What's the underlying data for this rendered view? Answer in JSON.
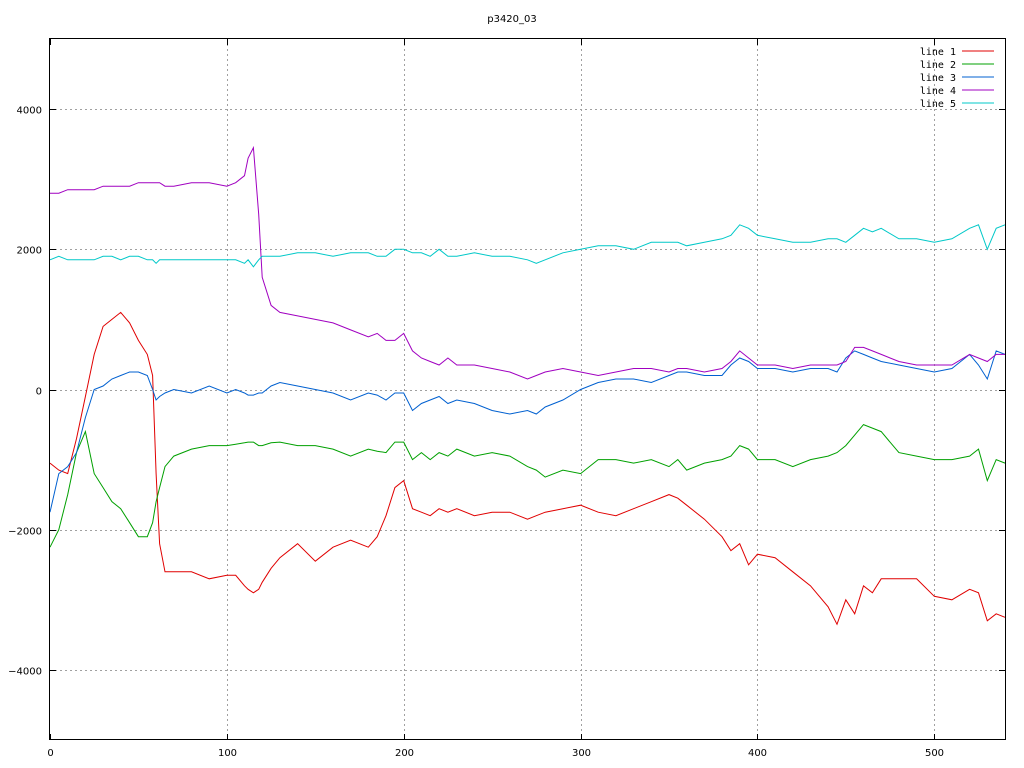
{
  "chart_data": {
    "type": "line",
    "title": "p3420_03",
    "xlabel": "",
    "ylabel": "",
    "xlim": [
      0,
      540
    ],
    "ylim": [
      -5000,
      5000
    ],
    "grid": true,
    "legend_position": "top-right",
    "x_ticks": [
      0,
      100,
      200,
      300,
      400,
      500
    ],
    "y_ticks": [
      -4000,
      -2000,
      0,
      2000,
      4000
    ],
    "x_tick_labels": [
      "0",
      "100",
      "200",
      "300",
      "400",
      "500"
    ],
    "y_tick_labels": [
      "−4000",
      "−2000",
      "0",
      "2000",
      "4000"
    ],
    "x": [
      0,
      5,
      10,
      15,
      20,
      25,
      30,
      35,
      40,
      45,
      50,
      55,
      58,
      60,
      62,
      65,
      70,
      80,
      90,
      100,
      105,
      110,
      112,
      115,
      118,
      120,
      125,
      130,
      140,
      150,
      160,
      170,
      180,
      185,
      190,
      195,
      200,
      205,
      210,
      215,
      220,
      225,
      230,
      240,
      250,
      260,
      270,
      275,
      280,
      290,
      300,
      310,
      320,
      330,
      340,
      350,
      355,
      360,
      370,
      380,
      385,
      390,
      395,
      400,
      410,
      420,
      430,
      440,
      445,
      450,
      455,
      460,
      465,
      470,
      480,
      490,
      500,
      510,
      520,
      525,
      530,
      535,
      540
    ],
    "series": [
      {
        "name": "line 1",
        "color": "#e00000",
        "values": [
          -1050,
          -1150,
          -1200,
          -700,
          -100,
          500,
          900,
          1000,
          1100,
          950,
          700,
          500,
          200,
          -1200,
          -2200,
          -2600,
          -2600,
          -2600,
          -2700,
          -2650,
          -2650,
          -2800,
          -2850,
          -2900,
          -2850,
          -2750,
          -2550,
          -2400,
          -2200,
          -2450,
          -2250,
          -2150,
          -2250,
          -2100,
          -1800,
          -1400,
          -1300,
          -1700,
          -1750,
          -1800,
          -1700,
          -1750,
          -1700,
          -1800,
          -1750,
          -1750,
          -1850,
          -1800,
          -1750,
          -1700,
          -1650,
          -1750,
          -1800,
          -1700,
          -1600,
          -1500,
          -1550,
          -1650,
          -1850,
          -2100,
          -2300,
          -2200,
          -2500,
          -2350,
          -2400,
          -2600,
          -2800,
          -3100,
          -3350,
          -3000,
          -3200,
          -2800,
          -2900,
          -2700,
          -2700,
          -2700,
          -2950,
          -3000,
          -2850,
          -2900,
          -3300,
          -3200,
          -3250
        ]
      },
      {
        "name": "line 2",
        "color": "#00a000",
        "values": [
          -2250,
          -2000,
          -1500,
          -900,
          -600,
          -1200,
          -1400,
          -1600,
          -1700,
          -1900,
          -2100,
          -2100,
          -1900,
          -1600,
          -1400,
          -1100,
          -950,
          -850,
          -800,
          -800,
          -780,
          -760,
          -750,
          -750,
          -800,
          -800,
          -760,
          -750,
          -800,
          -800,
          -850,
          -950,
          -850,
          -880,
          -900,
          -750,
          -750,
          -1000,
          -900,
          -1000,
          -900,
          -950,
          -850,
          -950,
          -900,
          -950,
          -1100,
          -1150,
          -1250,
          -1150,
          -1200,
          -1000,
          -1000,
          -1050,
          -1000,
          -1100,
          -1000,
          -1150,
          -1050,
          -1000,
          -950,
          -800,
          -850,
          -1000,
          -1000,
          -1100,
          -1000,
          -950,
          -900,
          -800,
          -650,
          -500,
          -550,
          -600,
          -900,
          -950,
          -1000,
          -1000,
          -950,
          -850,
          -1300,
          -1000,
          -1050
        ]
      },
      {
        "name": "line 3",
        "color": "#0060d0",
        "values": [
          -1750,
          -1200,
          -1100,
          -900,
          -400,
          0,
          50,
          150,
          200,
          250,
          250,
          200,
          0,
          -150,
          -100,
          -50,
          0,
          -50,
          50,
          -50,
          0,
          -50,
          -80,
          -80,
          -50,
          -50,
          50,
          100,
          50,
          0,
          -50,
          -150,
          -50,
          -80,
          -150,
          -50,
          -50,
          -300,
          -200,
          -150,
          -100,
          -200,
          -150,
          -200,
          -300,
          -350,
          -300,
          -350,
          -250,
          -150,
          0,
          100,
          150,
          150,
          100,
          200,
          250,
          250,
          200,
          200,
          350,
          450,
          400,
          300,
          300,
          250,
          300,
          300,
          250,
          450,
          550,
          500,
          450,
          400,
          350,
          300,
          250,
          300,
          500,
          350,
          150,
          550,
          500
        ]
      },
      {
        "name": "line 4",
        "color": "#a000c0",
        "values": [
          2800,
          2800,
          2850,
          2850,
          2850,
          2850,
          2900,
          2900,
          2900,
          2900,
          2950,
          2950,
          2950,
          2950,
          2950,
          2900,
          2900,
          2950,
          2950,
          2900,
          2950,
          3050,
          3300,
          3450,
          2500,
          1600,
          1200,
          1100,
          1050,
          1000,
          950,
          850,
          750,
          800,
          700,
          700,
          800,
          550,
          450,
          400,
          350,
          450,
          350,
          350,
          300,
          250,
          150,
          200,
          250,
          300,
          250,
          200,
          250,
          300,
          300,
          250,
          300,
          300,
          250,
          300,
          400,
          550,
          450,
          350,
          350,
          300,
          350,
          350,
          350,
          400,
          600,
          600,
          550,
          500,
          400,
          350,
          350,
          350,
          500,
          450,
          400,
          500,
          500
        ]
      },
      {
        "name": "line 5",
        "color": "#00c8c8",
        "values": [
          1850,
          1900,
          1850,
          1850,
          1850,
          1850,
          1900,
          1900,
          1850,
          1900,
          1900,
          1850,
          1850,
          1800,
          1850,
          1850,
          1850,
          1850,
          1850,
          1850,
          1850,
          1800,
          1850,
          1750,
          1850,
          1900,
          1900,
          1900,
          1950,
          1950,
          1900,
          1950,
          1950,
          1900,
          1900,
          2000,
          2000,
          1950,
          1950,
          1900,
          2000,
          1900,
          1900,
          1950,
          1900,
          1900,
          1850,
          1800,
          1850,
          1950,
          2000,
          2050,
          2050,
          2000,
          2100,
          2100,
          2100,
          2050,
          2100,
          2150,
          2200,
          2350,
          2300,
          2200,
          2150,
          2100,
          2100,
          2150,
          2150,
          2100,
          2200,
          2300,
          2250,
          2300,
          2150,
          2150,
          2100,
          2150,
          2300,
          2350,
          2000,
          2300,
          2350
        ]
      }
    ]
  }
}
